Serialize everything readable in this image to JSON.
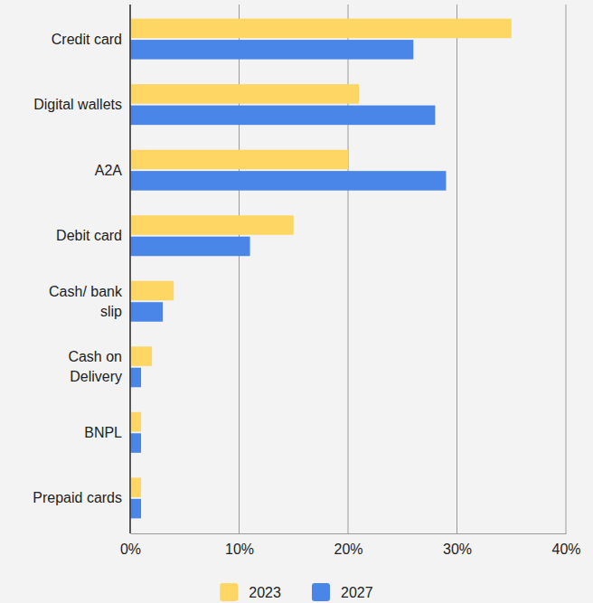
{
  "chart_data": {
    "type": "bar",
    "orientation": "horizontal",
    "categories": [
      "Credit card",
      "Digital wallets",
      "A2A",
      "Debit card",
      "Cash/ bank slip",
      "Cash on Delivery",
      "BNPL",
      "Prepaid cards"
    ],
    "series": [
      {
        "name": "2023",
        "color": "#fdd663",
        "values": [
          35,
          21,
          20,
          15,
          4,
          2,
          1,
          1
        ]
      },
      {
        "name": "2027",
        "color": "#4a86e8",
        "values": [
          26,
          28,
          29,
          11,
          3,
          1,
          1,
          1
        ]
      }
    ],
    "xlim": [
      0,
      40
    ],
    "xticks": [
      {
        "value": 0,
        "label": "0%"
      },
      {
        "value": 10,
        "label": "10%"
      },
      {
        "value": 20,
        "label": "20%"
      },
      {
        "value": 30,
        "label": "30%"
      },
      {
        "value": 40,
        "label": "40%"
      }
    ],
    "grid": true,
    "legend": "bottom"
  }
}
